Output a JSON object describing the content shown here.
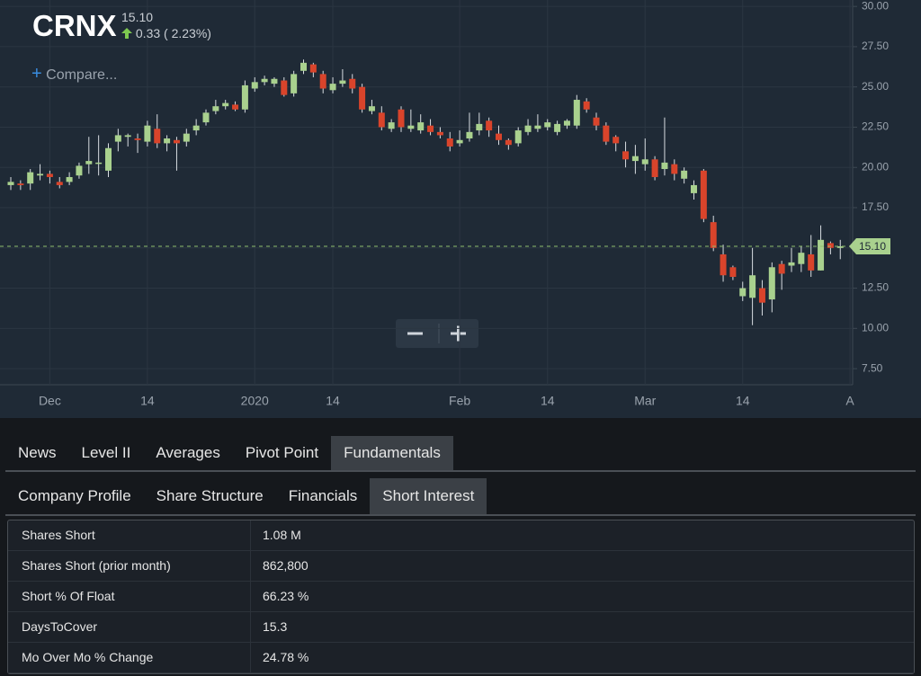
{
  "header": {
    "symbol": "CRNX",
    "price": "15.10",
    "change": "0.33 ( 2.23%)",
    "compare": "Compare..."
  },
  "chart_data": {
    "type": "candlestick",
    "categories": [
      null,
      null,
      null,
      null,
      "Dec",
      null,
      null,
      null,
      null,
      null,
      null,
      null,
      null,
      null,
      "14",
      null,
      null,
      null,
      null,
      null,
      null,
      null,
      null,
      null,
      null,
      "2020",
      null,
      null,
      null,
      null,
      null,
      null,
      null,
      "14",
      null,
      null,
      null,
      null,
      null,
      null,
      null,
      null,
      null,
      null,
      null,
      null,
      "Feb",
      null,
      null,
      null,
      null,
      null,
      null,
      null,
      null,
      "14",
      null,
      null,
      null,
      null,
      null,
      null,
      null,
      null,
      null,
      "Mar",
      null,
      null,
      null,
      null,
      null,
      null,
      null,
      null,
      null,
      "14",
      null,
      null,
      null,
      null,
      null,
      null,
      null,
      null,
      null,
      null,
      "A"
    ],
    "open": [
      18.9,
      19.0,
      19.0,
      19.5,
      19.6,
      19.1,
      19.1,
      19.5,
      20.2,
      20.3,
      19.8,
      21.6,
      21.9,
      21.8,
      21.6,
      22.4,
      21.5,
      21.7,
      21.6,
      22.3,
      22.8,
      23.5,
      23.8,
      23.9,
      23.6,
      24.9,
      25.3,
      25.2,
      25.4,
      24.6,
      26.0,
      26.4,
      25.8,
      24.8,
      25.2,
      25.5,
      25.0,
      23.5,
      23.4,
      22.4,
      23.6,
      22.4,
      22.3,
      22.6,
      22.2,
      21.8,
      21.5,
      21.8,
      22.3,
      22.9,
      22.1,
      21.7,
      21.5,
      22.2,
      22.4,
      22.5,
      22.2,
      22.6,
      22.6,
      24.1,
      23.1,
      22.6,
      21.9,
      21.0,
      20.4,
      20.2,
      20.5,
      19.9,
      20.2,
      19.3,
      18.4,
      19.8,
      16.6,
      14.6,
      13.8,
      12.0,
      11.9,
      12.5,
      11.8,
      14.0,
      13.9,
      14.0,
      14.6,
      13.6,
      15.3,
      15.0,
      null
    ],
    "high": [
      19.4,
      19.2,
      19.9,
      20.2,
      19.8,
      19.4,
      19.7,
      20.3,
      21.9,
      22.0,
      21.5,
      22.4,
      22.1,
      22.1,
      22.9,
      23.3,
      22.0,
      21.9,
      22.4,
      23.0,
      23.6,
      24.2,
      24.2,
      24.1,
      25.4,
      25.6,
      25.7,
      25.6,
      25.6,
      26.0,
      26.7,
      26.5,
      26.0,
      25.6,
      26.1,
      25.8,
      25.2,
      24.2,
      23.8,
      23.0,
      23.8,
      23.6,
      23.3,
      23.0,
      22.5,
      22.2,
      22.3,
      23.4,
      23.4,
      23.1,
      22.6,
      21.8,
      22.5,
      23.0,
      23.3,
      23.0,
      22.9,
      23.0,
      24.5,
      24.3,
      23.4,
      22.8,
      22.0,
      21.6,
      21.4,
      21.8,
      20.7,
      23.1,
      20.5,
      20.0,
      19.2,
      19.9,
      17.0,
      15.2,
      13.9,
      12.9,
      15.0,
      13.0,
      14.1,
      14.2,
      15.0,
      15.1,
      15.8,
      16.4,
      15.4,
      15.5,
      null
    ],
    "low": [
      18.6,
      18.6,
      18.6,
      19.2,
      19.0,
      18.7,
      18.9,
      19.3,
      19.6,
      19.5,
      19.4,
      21.0,
      21.3,
      20.9,
      21.3,
      21.2,
      21.0,
      19.8,
      21.3,
      22.0,
      22.6,
      23.3,
      23.6,
      23.5,
      23.4,
      24.7,
      25.1,
      25.0,
      24.4,
      24.4,
      25.8,
      25.6,
      24.6,
      24.6,
      25.0,
      24.6,
      23.4,
      23.3,
      22.3,
      22.2,
      22.2,
      22.2,
      22.1,
      22.0,
      21.8,
      21.0,
      21.3,
      21.6,
      22.0,
      21.9,
      21.4,
      21.1,
      21.3,
      22.0,
      22.2,
      22.3,
      22.0,
      22.4,
      22.4,
      23.4,
      22.3,
      21.4,
      21.0,
      20.0,
      19.6,
      19.8,
      19.2,
      19.5,
      19.2,
      19.0,
      18.0,
      16.6,
      14.8,
      12.9,
      13.0,
      11.7,
      10.2,
      10.8,
      11.0,
      12.4,
      13.5,
      13.5,
      13.2,
      13.6,
      14.6,
      14.3,
      null
    ],
    "close": [
      19.1,
      18.9,
      19.7,
      19.6,
      19.4,
      18.9,
      19.4,
      20.1,
      20.4,
      20.3,
      21.2,
      22.0,
      22.0,
      21.7,
      22.6,
      21.5,
      21.8,
      21.5,
      22.1,
      22.6,
      23.4,
      23.8,
      24.0,
      23.6,
      25.1,
      25.3,
      25.5,
      25.5,
      24.5,
      25.8,
      26.5,
      25.9,
      24.9,
      25.2,
      25.4,
      24.9,
      23.6,
      23.8,
      22.5,
      22.8,
      22.5,
      22.6,
      22.8,
      22.2,
      22.0,
      21.3,
      21.7,
      22.2,
      22.7,
      22.3,
      21.7,
      21.4,
      22.3,
      22.6,
      22.6,
      22.8,
      22.7,
      22.9,
      24.2,
      23.6,
      22.6,
      21.6,
      21.5,
      20.5,
      20.7,
      20.5,
      19.4,
      20.3,
      19.6,
      19.8,
      18.9,
      16.8,
      15.0,
      13.3,
      13.2,
      12.5,
      13.3,
      11.6,
      13.8,
      13.4,
      14.1,
      14.7,
      13.6,
      15.5,
      15.0,
      15.1,
      null
    ],
    "up_color": "#a9d18e",
    "down_color": "#d9442b",
    "ylim": [
      6.5,
      30.4
    ],
    "yticks": [
      {
        "value": 30,
        "label": "30.00"
      },
      {
        "value": 27.5,
        "label": "27.50"
      },
      {
        "value": 25,
        "label": "25.00"
      },
      {
        "value": 22.5,
        "label": "22.50"
      },
      {
        "value": 20,
        "label": "20.00"
      },
      {
        "value": 17.5,
        "label": "17.50"
      },
      {
        "value": 15,
        "label": "15.00"
      },
      {
        "value": 12.5,
        "label": "12.50"
      },
      {
        "value": 10,
        "label": "10.00"
      },
      {
        "value": 7.5,
        "label": "7.50"
      }
    ],
    "last_price": {
      "value": 15.1,
      "label": "15.10"
    },
    "grid": true
  },
  "tabs": [
    "News",
    "Level II",
    "Averages",
    "Pivot Point",
    "Fundamentals"
  ],
  "subtabs": [
    "Company Profile",
    "Share Structure",
    "Financials",
    "Short Interest"
  ],
  "table": {
    "rows": [
      [
        "Shares Short",
        "1.08 M"
      ],
      [
        "Shares Short (prior month)",
        "862,800"
      ],
      [
        "Short % Of Float",
        "66.23 %"
      ],
      [
        "DaysToCover",
        "15.3"
      ],
      [
        "Mo Over Mo % Change",
        "24.78 %"
      ]
    ]
  }
}
